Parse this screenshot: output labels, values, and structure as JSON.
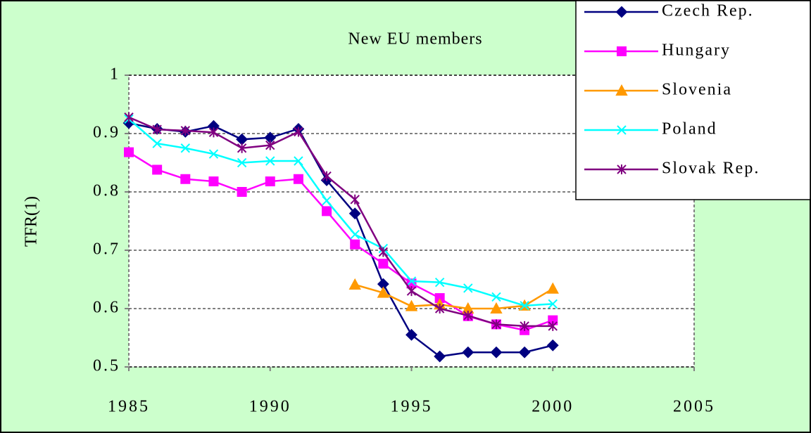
{
  "chart_data": {
    "type": "line",
    "title": "New EU members",
    "ylabel": "TFR(1)",
    "x": [
      1985,
      1986,
      1987,
      1988,
      1989,
      1990,
      1991,
      1992,
      1993,
      1994,
      1995,
      1996,
      1997,
      1998,
      1999,
      2000
    ],
    "series": [
      {
        "name": "Czech Rep.",
        "color": "#000080",
        "marker": "diamond",
        "values": [
          0.918,
          0.908,
          0.903,
          0.913,
          0.89,
          0.893,
          0.908,
          0.82,
          0.763,
          0.642,
          0.555,
          0.518,
          0.525,
          0.525,
          0.525,
          0.537
        ]
      },
      {
        "name": "Hungary",
        "color": "#ff00ff",
        "marker": "square",
        "values": [
          0.868,
          0.838,
          0.822,
          0.818,
          0.8,
          0.818,
          0.822,
          0.767,
          0.71,
          0.677,
          0.643,
          0.618,
          0.587,
          0.573,
          0.563,
          0.58
        ]
      },
      {
        "name": "Slovenia",
        "color": "#ff9900",
        "marker": "triangle",
        "values": [
          null,
          null,
          null,
          null,
          null,
          null,
          null,
          null,
          0.641,
          0.627,
          0.604,
          0.607,
          0.6,
          0.6,
          0.605,
          0.634
        ]
      },
      {
        "name": "Poland",
        "color": "#00ffff",
        "marker": "x",
        "values": [
          0.925,
          0.883,
          0.875,
          0.865,
          0.85,
          0.853,
          0.853,
          0.785,
          0.727,
          0.703,
          0.647,
          0.645,
          0.635,
          0.62,
          0.605,
          0.608
        ]
      },
      {
        "name": "Slovak Rep.",
        "color": "#800080",
        "marker": "asterisk",
        "values": [
          0.928,
          0.907,
          0.905,
          0.902,
          0.875,
          0.88,
          0.903,
          0.827,
          0.787,
          0.697,
          0.63,
          0.6,
          0.588,
          0.573,
          0.57,
          0.57
        ]
      }
    ],
    "xlim": [
      1985,
      2005
    ],
    "xticks": [
      1985,
      1990,
      1995,
      2000,
      2005
    ],
    "ylim": [
      0.5,
      1
    ],
    "yticks": [
      0.5,
      0.6,
      0.7,
      0.8,
      0.9,
      1
    ],
    "grid": true,
    "legend": "upper right",
    "background": "#ccffcc"
  }
}
